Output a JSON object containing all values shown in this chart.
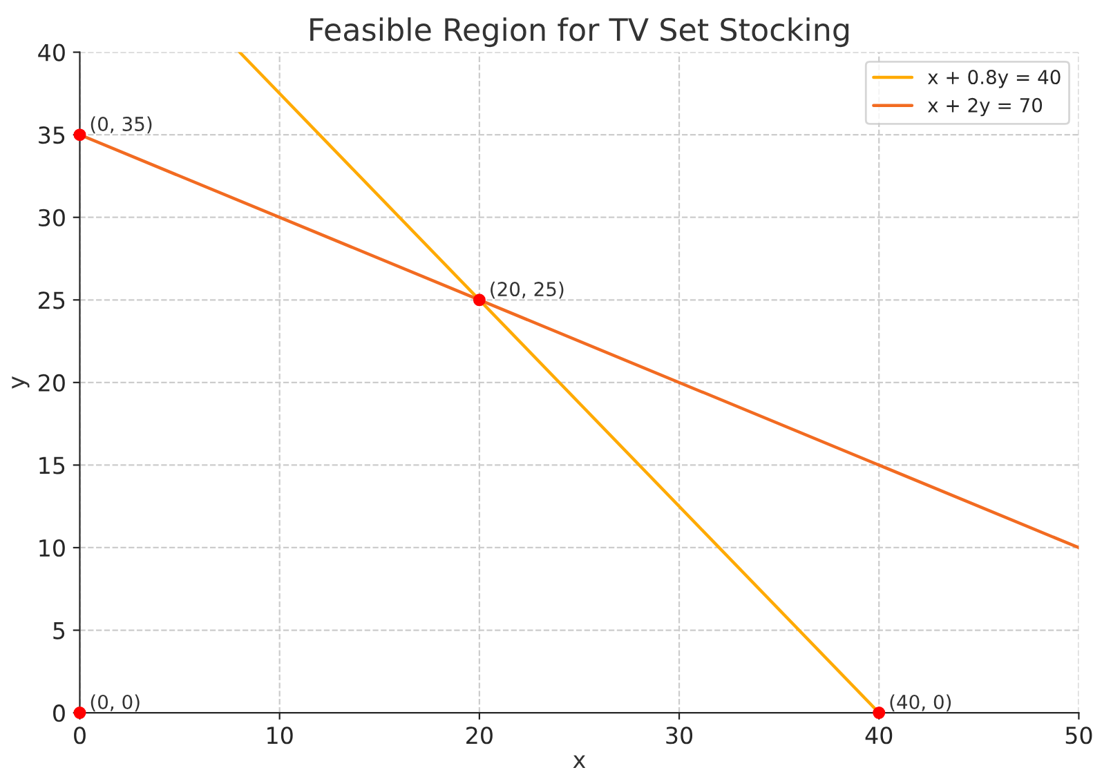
{
  "chart_data": {
    "type": "line",
    "title": "Feasible Region for TV Set Stocking",
    "xlabel": "x",
    "ylabel": "y",
    "series": [
      {
        "name": "x + 0.8y = 40",
        "color": "#ffaa00",
        "x": [
          8,
          40
        ],
        "values": [
          40,
          0
        ]
      },
      {
        "name": "x + 2y = 70",
        "color": "#f26b21",
        "x": [
          0,
          50
        ],
        "values": [
          35,
          10
        ]
      },
      {
        "type": "scatter",
        "color": "#ff0000",
        "x": [
          0,
          0,
          20,
          40
        ],
        "values": [
          0,
          35,
          25,
          0
        ]
      }
    ],
    "annotations": [
      {
        "text": "(0, 0)",
        "x": 0,
        "y": 0
      },
      {
        "text": "(0, 35)",
        "x": 0,
        "y": 35
      },
      {
        "text": "(20, 25)",
        "x": 20,
        "y": 25
      },
      {
        "text": "(40, 0)",
        "x": 40,
        "y": 0
      }
    ],
    "xlim": [
      0,
      50
    ],
    "ylim": [
      0,
      40
    ],
    "xticks": [
      0,
      10,
      20,
      30,
      40,
      50
    ],
    "yticks": [
      0,
      5,
      10,
      15,
      20,
      25,
      30,
      35,
      40
    ],
    "grid": true,
    "legend": "top right"
  }
}
